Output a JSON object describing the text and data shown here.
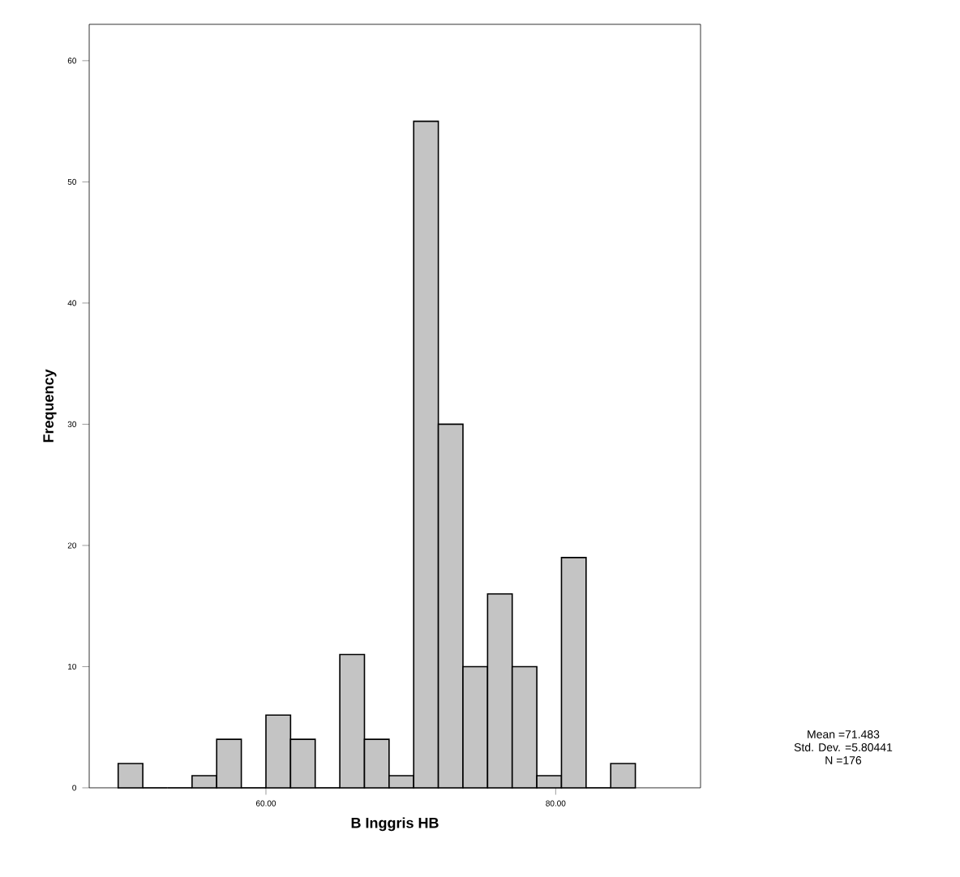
{
  "chart_data": {
    "type": "histogram",
    "xlabel": "B Inggris HB",
    "ylabel": "Frequency",
    "bins": [
      49.8,
      51.5,
      53.2,
      54.9,
      56.6,
      58.3,
      60,
      61.7,
      63.4,
      65.1,
      66.8,
      68.5,
      70.2,
      71.9,
      73.6,
      75.3,
      77,
      78.7,
      80.4,
      82.1,
      83.8,
      85.5
    ],
    "values": [
      2,
      0,
      0,
      1,
      4,
      0,
      6,
      4,
      0,
      11,
      4,
      1,
      55,
      30,
      10,
      16,
      10,
      1,
      19,
      0,
      2
    ],
    "color": "#c4c4c4",
    "xlim": [
      47.8,
      90
    ],
    "ylim": [
      0,
      63
    ],
    "xticks": [
      {
        "value": 60,
        "label": "60.00"
      },
      {
        "value": 80,
        "label": "80.00"
      }
    ],
    "yticks": [
      0,
      10,
      20,
      30,
      40,
      50,
      60
    ],
    "annotations": [
      "Mean =71.483",
      "Std. Dev. =5.80441",
      "N =176"
    ]
  }
}
